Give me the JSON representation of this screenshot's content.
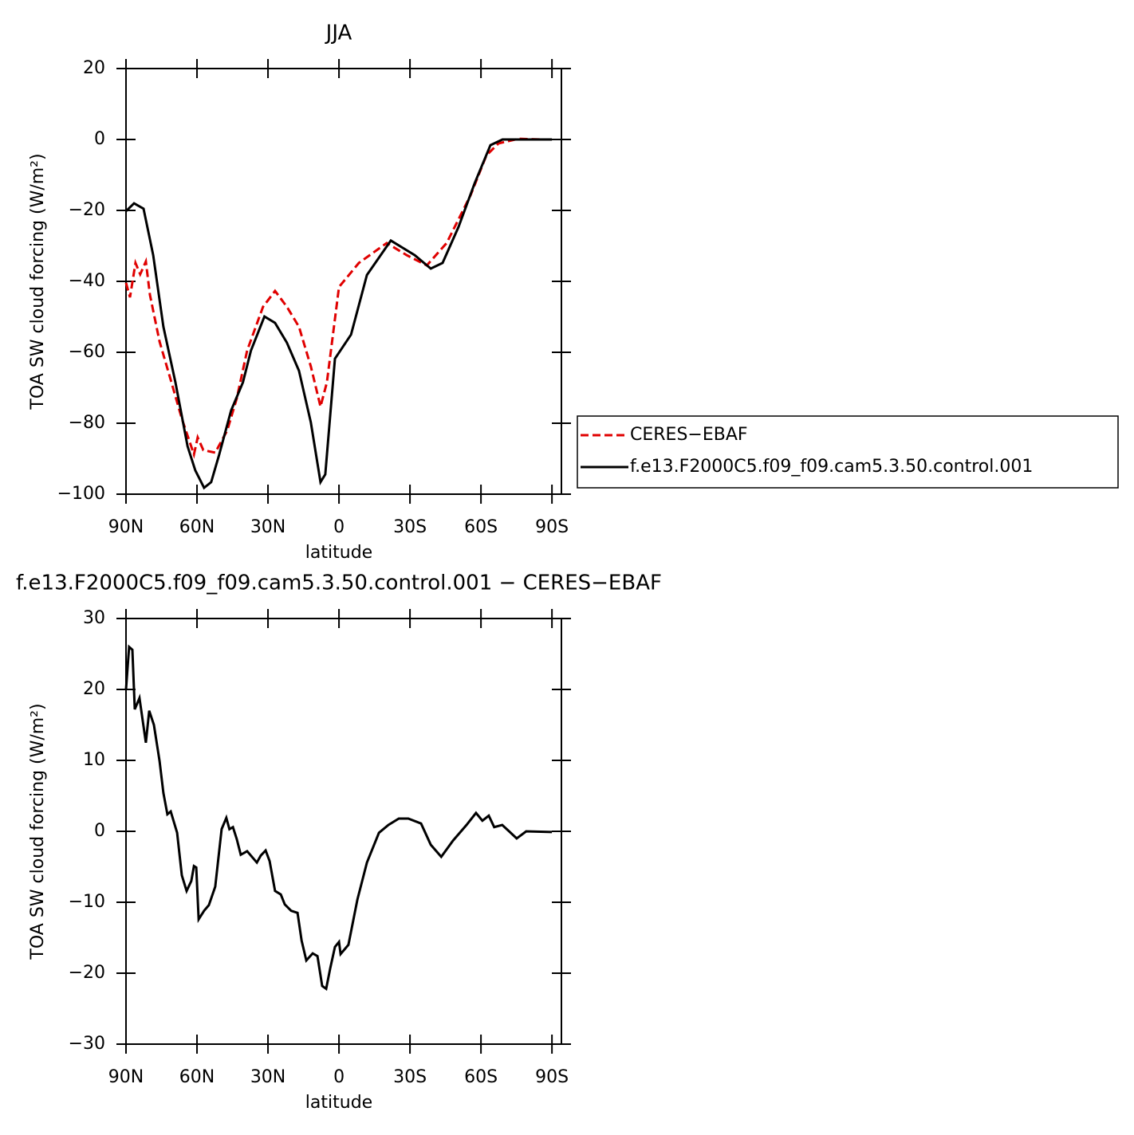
{
  "chart_data": [
    {
      "type": "line",
      "title": "JJA",
      "xlabel": "latitude",
      "ylabel": "TOA SW cloud forcing (W/m²)",
      "xlim": [
        90,
        -94
      ],
      "xticks": [
        {
          "value": 90,
          "label": "90N"
        },
        {
          "value": 60,
          "label": "60N"
        },
        {
          "value": 30,
          "label": "30N"
        },
        0,
        {
          "value": -30,
          "label": "30S"
        },
        {
          "value": -60,
          "label": "60S"
        },
        {
          "value": -90,
          "label": "90S"
        }
      ],
      "ylim": [
        -100,
        20
      ],
      "yticks": [
        {
          "value": -100,
          "label": "−100"
        },
        {
          "value": -80,
          "label": "−80"
        },
        {
          "value": -60,
          "label": "−60"
        },
        {
          "value": -40,
          "label": "−40"
        },
        {
          "value": -20,
          "label": "−20"
        },
        0,
        20
      ],
      "legend": "right",
      "series": [
        {
          "name": "CERES−EBAF",
          "color": "#e00000",
          "dashed": true,
          "x": [
            90,
            88.3,
            86,
            84,
            81.6,
            79.9,
            75.8,
            70.8,
            66.4,
            61.3,
            59.7,
            57.3,
            52.3,
            47.2,
            43.2,
            38.8,
            32.1,
            27,
            22,
            16.9,
            11.9,
            7.8,
            5.1,
            0,
            -8.4,
            -20.2,
            -28.6,
            -37.1,
            -45.5,
            -55.6,
            -62.3,
            -67.4,
            -75.8,
            -85.8,
            -90
          ],
          "values": [
            -40.4,
            -44.5,
            -34.8,
            -38,
            -34.4,
            -43.8,
            -57,
            -68.5,
            -78.7,
            -88.8,
            -84,
            -87.6,
            -88.3,
            -82,
            -73,
            -59.5,
            -47.2,
            -42.7,
            -47.2,
            -52.8,
            -64,
            -75.3,
            -68.5,
            -41.6,
            -34.8,
            -29.2,
            -32.6,
            -35.5,
            -29.2,
            -15.7,
            -4.5,
            -1.1,
            0.2,
            0,
            0
          ]
        },
        {
          "name": "f.e13.F2000C5.f09_f09.cam5.3.50.control.001",
          "color": "#000000",
          "dashed": false,
          "x": [
            90,
            86.6,
            82.6,
            78.5,
            74.2,
            69.1,
            64,
            60.7,
            57,
            54,
            50.6,
            45.6,
            40.6,
            37.2,
            31.5,
            27,
            22,
            16.9,
            11.9,
            7.8,
            5.8,
            1.7,
            -5.1,
            -11.8,
            -21.9,
            -32,
            -38.8,
            -43.8,
            -50.5,
            -57.3,
            -64,
            -69.1,
            -90
          ],
          "values": [
            -20.2,
            -18,
            -19.5,
            -32.6,
            -52.8,
            -68.5,
            -86.5,
            -93.3,
            -98.2,
            -96.6,
            -88.8,
            -76.4,
            -68.5,
            -59.5,
            -49.9,
            -51.7,
            -57.3,
            -65.2,
            -79.8,
            -96.6,
            -94.4,
            -61.8,
            -55,
            -38.2,
            -28.5,
            -32.6,
            -36.4,
            -34.8,
            -24.7,
            -12.4,
            -1.6,
            0,
            0
          ]
        }
      ]
    },
    {
      "type": "line",
      "title": "f.e13.F2000C5.f09_f09.cam5.3.50.control.001 − CERES−EBAF",
      "xlabel": "latitude",
      "ylabel": "TOA SW cloud forcing (W/m²)",
      "xlim": [
        90,
        -94
      ],
      "xticks": [
        {
          "value": 90,
          "label": "90N"
        },
        {
          "value": 60,
          "label": "60N"
        },
        {
          "value": 30,
          "label": "30N"
        },
        0,
        {
          "value": -30,
          "label": "30S"
        },
        {
          "value": -60,
          "label": "60S"
        },
        {
          "value": -90,
          "label": "90S"
        }
      ],
      "ylim": [
        -30,
        30
      ],
      "yticks": [
        {
          "value": -30,
          "label": "−30"
        },
        {
          "value": -20,
          "label": "−20"
        },
        {
          "value": -10,
          "label": "−10"
        },
        0,
        10,
        20,
        30
      ],
      "series": [
        {
          "color": "#000000",
          "dashed": false,
          "x": [
            90,
            88.7,
            87.3,
            86.3,
            84.3,
            81.6,
            80.2,
            78.2,
            75.8,
            74.2,
            72.5,
            71.1,
            68.4,
            66.4,
            64.4,
            62.4,
            61.3,
            60.3,
            59.3,
            57,
            55,
            52.3,
            49.6,
            47.6,
            46.3,
            44.8,
            43.2,
            41.5,
            38.8,
            34.7,
            33,
            31,
            29.3,
            27,
            24.6,
            22.9,
            20.2,
            17.5,
            15.8,
            13.8,
            11.1,
            9.1,
            7.1,
            5.4,
            3.7,
            1.7,
            0,
            -0.7,
            -4,
            -7.8,
            -11.8,
            -16.9,
            -20.9,
            -25.3,
            -29.3,
            -34.7,
            -38.8,
            -43.2,
            -48.2,
            -53.9,
            -57.9,
            -60.6,
            -63.3,
            -65.6,
            -69,
            -75.1,
            -79.1,
            -90
          ],
          "values": [
            20,
            26,
            25.6,
            17.2,
            18.8,
            12.5,
            17,
            15,
            9.9,
            5.4,
            2.4,
            2.8,
            -0.2,
            -6.2,
            -8.4,
            -7,
            -4.9,
            -5.1,
            -12.4,
            -11.2,
            -10.4,
            -7.8,
            0.3,
            1.9,
            0.3,
            0.6,
            -1.1,
            -3.3,
            -2.8,
            -4.4,
            -3.4,
            -2.7,
            -4.2,
            -8.4,
            -8.9,
            -10.3,
            -11.2,
            -11.5,
            -15.4,
            -18.2,
            -17.2,
            -17.6,
            -21.8,
            -22.2,
            -19.3,
            -16.3,
            -15.6,
            -17.3,
            -16,
            -9.6,
            -4.4,
            -0.2,
            0.9,
            1.8,
            1.8,
            1.1,
            -1.9,
            -3.6,
            -1.3,
            0.9,
            2.6,
            1.5,
            2.2,
            0.6,
            0.9,
            -1,
            0,
            -0.1
          ]
        }
      ]
    }
  ]
}
